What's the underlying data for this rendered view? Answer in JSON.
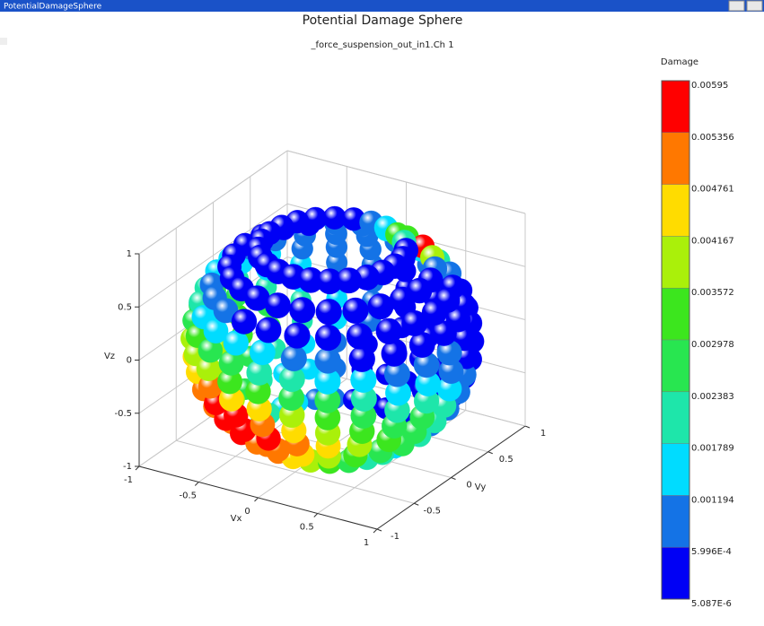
{
  "window_title": "PotentialDamageSphere",
  "chart_data": {
    "type": "scatter3d",
    "title": "Potential Damage Sphere",
    "subtitle": "_force_suspension_out_in1.Ch 1",
    "xlabel": "Vx",
    "ylabel": "Vy",
    "zlabel": "Vz",
    "xlim": [
      -1,
      1
    ],
    "ylim": [
      -1,
      1
    ],
    "zlim": [
      -1,
      1
    ],
    "xticks": [
      -1,
      -0.5,
      0,
      0.5,
      1
    ],
    "yticks": [
      -1,
      -0.5,
      0,
      0.5,
      1
    ],
    "zticks": [
      -1,
      -0.5,
      0,
      0.5,
      1
    ],
    "colorbar": {
      "label": "Damage",
      "ticks": [
        {
          "value": 5.087e-06,
          "label": "5.087E-6"
        },
        {
          "value": 0.0005996,
          "label": "5.996E-4"
        },
        0.001194,
        0.001789,
        0.002383,
        0.002978,
        0.003572,
        0.004167,
        0.004761,
        0.005356,
        0.00595
      ],
      "colors": [
        "#0000f5",
        "#1473e6",
        "#00dcff",
        "#1ee6aa",
        "#28e650",
        "#3ce61e",
        "#aaf00a",
        "#ffdc00",
        "#ff7800",
        "#ff0000"
      ]
    },
    "vz": [
      -0.85,
      -0.68,
      -0.51,
      -0.34,
      -0.17,
      0,
      0.17,
      0.34,
      0.51,
      0.68,
      0.85
    ],
    "azimuth_deg": [
      0,
      15,
      30,
      45,
      60,
      75,
      90,
      105,
      120,
      135,
      150,
      165,
      180,
      195,
      210,
      225,
      240,
      255,
      270,
      285,
      300,
      315,
      330,
      345
    ],
    "damage": [
      [
        0.0015,
        0.0009,
        0.0003,
        0.0003,
        0.0003,
        0.0003,
        0.0003,
        0.0003,
        0.0009,
        0.0009,
        0.0015,
        0.0015,
        0.0021,
        0.0027,
        0.0039,
        0.0045,
        0.0051,
        0.0051,
        0.0045,
        0.0039,
        0.0033,
        0.0027,
        0.0021,
        0.0021
      ],
      [
        0.0021,
        0.0009,
        0.0003,
        0.0003,
        0.0003,
        0.0003,
        0.0003,
        0.0003,
        0.0009,
        0.0015,
        0.0015,
        0.0021,
        0.0027,
        0.0039,
        0.0045,
        0.0051,
        0.0056,
        0.0051,
        0.0051,
        0.0045,
        0.0039,
        0.0033,
        0.0027,
        0.0027
      ],
      [
        0.0021,
        0.0009,
        0.0003,
        0.0003,
        0.0003,
        0.0003,
        0.0003,
        0.0003,
        0.0009,
        0.0015,
        0.0021,
        0.0027,
        0.0033,
        0.0039,
        0.0045,
        0.0051,
        0.0056,
        0.0056,
        0.0056,
        0.0051,
        0.0045,
        0.0039,
        0.0033,
        0.0027
      ],
      [
        0.0021,
        0.0009,
        0.0003,
        0.0003,
        0.0003,
        0.0003,
        0.0003,
        0.0009,
        0.0015,
        0.0021,
        0.0027,
        0.0033,
        0.0039,
        0.0045,
        0.0045,
        0.0051,
        0.0056,
        0.0056,
        0.0051,
        0.0045,
        0.0039,
        0.0033,
        0.0027,
        0.0027
      ],
      [
        0.0015,
        0.0009,
        0.0003,
        0.0003,
        0.0003,
        0.0003,
        0.0003,
        0.0009,
        0.0015,
        0.0021,
        0.0027,
        0.0033,
        0.0039,
        0.0039,
        0.0045,
        0.0045,
        0.0051,
        0.0045,
        0.0045,
        0.0039,
        0.0033,
        0.0027,
        0.0021,
        0.0021
      ],
      [
        0.0009,
        0.0003,
        0.0003,
        0.0003,
        0.0003,
        0.0003,
        0.0003,
        0.0009,
        0.0015,
        0.0015,
        0.0021,
        0.0027,
        0.0033,
        0.0033,
        0.0039,
        0.0039,
        0.0039,
        0.0033,
        0.0033,
        0.0027,
        0.0027,
        0.0021,
        0.0015,
        0.0015
      ],
      [
        0.0009,
        0.0003,
        0.0003,
        0.0003,
        0.0003,
        0.0003,
        0.0003,
        0.0009,
        0.0009,
        0.0015,
        0.0015,
        0.0021,
        0.0027,
        0.0027,
        0.0027,
        0.0033,
        0.0027,
        0.0027,
        0.0021,
        0.0021,
        0.0015,
        0.0015,
        0.0009,
        0.0009
      ],
      [
        0.0003,
        0.0003,
        0.0003,
        0.0003,
        0.0003,
        0.0009,
        0.0009,
        0.0009,
        0.0009,
        0.0009,
        0.0015,
        0.0015,
        0.0021,
        0.0021,
        0.0021,
        0.0015,
        0.0015,
        0.0015,
        0.0015,
        0.0009,
        0.0009,
        0.0003,
        0.0003,
        0.0003
      ],
      [
        0.0003,
        0.0003,
        0.0003,
        0.0009,
        0.0021,
        0.0015,
        0.0009,
        0.0009,
        0.0009,
        0.0009,
        0.0009,
        0.0009,
        0.0015,
        0.0015,
        0.0009,
        0.0009,
        0.0009,
        0.0003,
        0.0003,
        0.0003,
        0.0003,
        0.0003,
        0.0003,
        0.0003
      ],
      [
        0.0003,
        0.0003,
        0.0009,
        0.0039,
        0.0056,
        0.0033,
        0.0015,
        0.0009,
        0.0009,
        0.0003,
        0.0003,
        0.0003,
        0.0003,
        0.0003,
        0.0003,
        0.0003,
        0.0003,
        0.0003,
        0.0003,
        0.0003,
        0.0003,
        0.0003,
        0.0003,
        0.0003
      ],
      [
        0.0003,
        0.0003,
        0.0003,
        0.0021,
        0.0033,
        0.0015,
        0.0009,
        0.0003,
        0.0003,
        0.0003,
        0.0003,
        0.0003,
        0.0003,
        0.0003,
        0.0003,
        0.0003,
        0.0003,
        0.0003,
        0.0003,
        0.0003,
        0.0003,
        0.0003,
        0.0003,
        0.0003
      ]
    ]
  }
}
